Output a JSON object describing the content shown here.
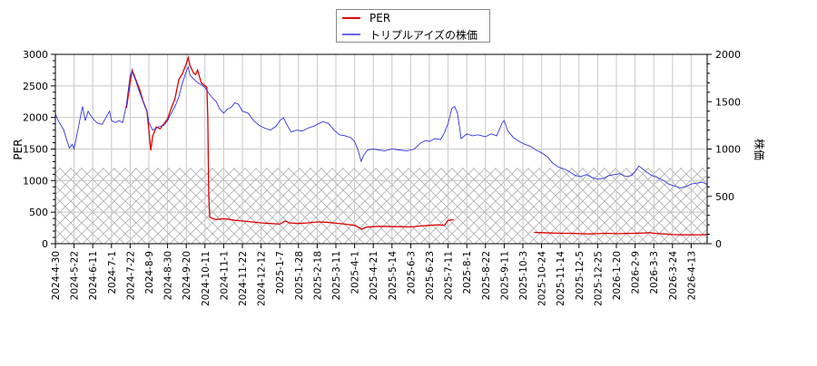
{
  "chart_data": {
    "type": "line",
    "title": "",
    "legend": {
      "position": "top-center",
      "entries": [
        {
          "label": "PER",
          "color": "#dd0000"
        },
        {
          "label": "トリプルアイズの株価",
          "color": "#3333dd"
        }
      ]
    },
    "axes": {
      "left": {
        "label": "PER",
        "min": 0,
        "max": 3000,
        "ticks": [
          0,
          500,
          1000,
          1500,
          2000,
          2500,
          3000
        ]
      },
      "right": {
        "label": "株価",
        "min": 0,
        "max": 2000,
        "ticks": [
          0,
          500,
          1000,
          1500,
          2000
        ]
      },
      "x": {
        "label": "",
        "tick_labels": [
          "2024-4-30",
          "2024-5-22",
          "2024-6-11",
          "2024-7-1",
          "2024-7-22",
          "2024-8-9",
          "2024-8-30",
          "2024-9-20",
          "2024-10-11",
          "2024-11-1",
          "2024-11-22",
          "2024-12-12",
          "2025-1-7",
          "2025-1-28",
          "2025-2-18",
          "2025-3-11",
          "2025-4-1",
          "2025-4-21",
          "2025-5-14",
          "2025-6-3",
          "2025-6-23",
          "2025-7-11",
          "2025-8-1",
          "2025-8-22",
          "2025-9-11",
          "2025-10-3",
          "2025-10-24",
          "2025-11-14",
          "2025-12-5",
          "2025-12-25",
          "2026-1-20",
          "2026-2-9",
          "2026-3-3",
          "2026-3-24",
          "2026-4-13"
        ]
      }
    },
    "grid": true,
    "hatched_band": {
      "axis": "left",
      "from": 0,
      "to": 1200,
      "pattern": "crosshatch"
    },
    "series": [
      {
        "name": "PER",
        "axis": "left",
        "color": "#dd0000",
        "segments": [
          [
            [
              3.8,
              2150
            ],
            [
              4.0,
              2550
            ],
            [
              4.1,
              2750
            ],
            [
              4.3,
              2600
            ],
            [
              4.5,
              2450
            ],
            [
              4.7,
              2250
            ],
            [
              4.9,
              2100
            ],
            [
              5.0,
              1800
            ],
            [
              5.1,
              1480
            ],
            [
              5.2,
              1700
            ],
            [
              5.4,
              1850
            ],
            [
              5.6,
              1820
            ],
            [
              5.8,
              1900
            ],
            [
              6.0,
              1980
            ],
            [
              6.2,
              2150
            ],
            [
              6.4,
              2300
            ],
            [
              6.6,
              2600
            ],
            [
              6.8,
              2700
            ],
            [
              7.0,
              2850
            ],
            [
              7.1,
              2950
            ],
            [
              7.2,
              2820
            ],
            [
              7.4,
              2700
            ],
            [
              7.5,
              2680
            ],
            [
              7.6,
              2750
            ],
            [
              7.8,
              2550
            ],
            [
              8.0,
              2500
            ],
            [
              8.1,
              2480
            ],
            [
              8.15,
              2000
            ],
            [
              8.2,
              800
            ],
            [
              8.25,
              420
            ],
            [
              8.4,
              400
            ],
            [
              8.6,
              380
            ],
            [
              8.8,
              390
            ],
            [
              9.0,
              395
            ],
            [
              9.3,
              385
            ],
            [
              9.6,
              370
            ],
            [
              10.0,
              360
            ],
            [
              10.5,
              345
            ],
            [
              11.0,
              330
            ],
            [
              11.5,
              320
            ],
            [
              12.0,
              310
            ],
            [
              12.3,
              360
            ],
            [
              12.5,
              330
            ],
            [
              13.0,
              320
            ],
            [
              13.5,
              330
            ],
            [
              14.0,
              345
            ],
            [
              14.5,
              340
            ],
            [
              15.0,
              325
            ],
            [
              15.5,
              310
            ],
            [
              16.0,
              290
            ],
            [
              16.2,
              260
            ],
            [
              16.4,
              230
            ],
            [
              16.6,
              260
            ],
            [
              17.0,
              270
            ],
            [
              17.5,
              275
            ],
            [
              18.0,
              270
            ],
            [
              18.5,
              270
            ],
            [
              19.0,
              265
            ],
            [
              19.5,
              280
            ],
            [
              20.0,
              290
            ],
            [
              20.5,
              300
            ],
            [
              20.8,
              290
            ],
            [
              21.0,
              370
            ],
            [
              21.3,
              380
            ]
          ],
          [
            [
              25.6,
              180
            ],
            [
              26.0,
              175
            ],
            [
              26.5,
              170
            ],
            [
              27.0,
              165
            ],
            [
              27.5,
              165
            ],
            [
              28.0,
              160
            ],
            [
              28.5,
              155
            ],
            [
              29.0,
              160
            ],
            [
              29.5,
              165
            ],
            [
              30.0,
              160
            ],
            [
              30.5,
              162
            ],
            [
              31.0,
              165
            ],
            [
              31.5,
              170
            ],
            [
              31.8,
              175
            ],
            [
              32.0,
              165
            ],
            [
              32.5,
              155
            ],
            [
              33.0,
              145
            ],
            [
              33.5,
              140
            ],
            [
              34.0,
              140
            ],
            [
              34.5,
              142
            ],
            [
              35.0,
              145
            ],
            [
              35.3,
              150
            ]
          ]
        ]
      },
      {
        "name": "トリプルアイズの株価",
        "axis": "right",
        "color": "#3333dd",
        "points": [
          [
            0.0,
            1370
          ],
          [
            0.15,
            1300
          ],
          [
            0.3,
            1250
          ],
          [
            0.45,
            1200
          ],
          [
            0.6,
            1100
          ],
          [
            0.75,
            1010
          ],
          [
            0.9,
            1050
          ],
          [
            1.0,
            1000
          ],
          [
            1.15,
            1150
          ],
          [
            1.3,
            1300
          ],
          [
            1.45,
            1450
          ],
          [
            1.6,
            1300
          ],
          [
            1.75,
            1400
          ],
          [
            1.9,
            1350
          ],
          [
            2.1,
            1300
          ],
          [
            2.3,
            1270
          ],
          [
            2.5,
            1260
          ],
          [
            2.7,
            1330
          ],
          [
            2.9,
            1400
          ],
          [
            3.0,
            1300
          ],
          [
            3.2,
            1280
          ],
          [
            3.4,
            1300
          ],
          [
            3.6,
            1280
          ],
          [
            3.8,
            1470
          ],
          [
            4.0,
            1780
          ],
          [
            4.1,
            1820
          ],
          [
            4.3,
            1720
          ],
          [
            4.5,
            1600
          ],
          [
            4.7,
            1500
          ],
          [
            4.8,
            1450
          ],
          [
            4.9,
            1400
          ],
          [
            5.0,
            1280
          ],
          [
            5.2,
            1200
          ],
          [
            5.4,
            1220
          ],
          [
            5.6,
            1240
          ],
          [
            5.8,
            1250
          ],
          [
            6.0,
            1300
          ],
          [
            6.2,
            1380
          ],
          [
            6.4,
            1450
          ],
          [
            6.6,
            1550
          ],
          [
            6.8,
            1700
          ],
          [
            7.0,
            1820
          ],
          [
            7.1,
            1870
          ],
          [
            7.2,
            1780
          ],
          [
            7.4,
            1740
          ],
          [
            7.6,
            1700
          ],
          [
            7.8,
            1680
          ],
          [
            8.0,
            1650
          ],
          [
            8.2,
            1590
          ],
          [
            8.4,
            1540
          ],
          [
            8.6,
            1500
          ],
          [
            8.8,
            1420
          ],
          [
            9.0,
            1380
          ],
          [
            9.2,
            1420
          ],
          [
            9.4,
            1440
          ],
          [
            9.6,
            1490
          ],
          [
            9.8,
            1470
          ],
          [
            10.0,
            1400
          ],
          [
            10.3,
            1380
          ],
          [
            10.6,
            1300
          ],
          [
            10.9,
            1250
          ],
          [
            11.2,
            1220
          ],
          [
            11.5,
            1200
          ],
          [
            11.8,
            1240
          ],
          [
            12.0,
            1300
          ],
          [
            12.2,
            1330
          ],
          [
            12.4,
            1250
          ],
          [
            12.6,
            1180
          ],
          [
            12.9,
            1200
          ],
          [
            13.2,
            1190
          ],
          [
            13.5,
            1220
          ],
          [
            13.8,
            1240
          ],
          [
            14.0,
            1260
          ],
          [
            14.3,
            1290
          ],
          [
            14.6,
            1270
          ],
          [
            14.9,
            1200
          ],
          [
            15.2,
            1150
          ],
          [
            15.5,
            1140
          ],
          [
            15.8,
            1120
          ],
          [
            16.0,
            1080
          ],
          [
            16.2,
            980
          ],
          [
            16.35,
            870
          ],
          [
            16.5,
            940
          ],
          [
            16.7,
            990
          ],
          [
            17.0,
            1000
          ],
          [
            17.3,
            990
          ],
          [
            17.6,
            980
          ],
          [
            18.0,
            1000
          ],
          [
            18.4,
            990
          ],
          [
            18.8,
            980
          ],
          [
            19.2,
            1000
          ],
          [
            19.5,
            1060
          ],
          [
            19.8,
            1090
          ],
          [
            20.0,
            1080
          ],
          [
            20.3,
            1110
          ],
          [
            20.6,
            1100
          ],
          [
            20.8,
            1170
          ],
          [
            21.0,
            1270
          ],
          [
            21.2,
            1430
          ],
          [
            21.35,
            1450
          ],
          [
            21.5,
            1380
          ],
          [
            21.7,
            1110
          ],
          [
            22.0,
            1160
          ],
          [
            22.3,
            1140
          ],
          [
            22.6,
            1150
          ],
          [
            23.0,
            1130
          ],
          [
            23.3,
            1160
          ],
          [
            23.6,
            1140
          ],
          [
            23.9,
            1280
          ],
          [
            24.0,
            1300
          ],
          [
            24.2,
            1190
          ],
          [
            24.5,
            1120
          ],
          [
            24.8,
            1080
          ],
          [
            25.1,
            1050
          ],
          [
            25.4,
            1030
          ],
          [
            25.7,
            990
          ],
          [
            26.0,
            960
          ],
          [
            26.3,
            920
          ],
          [
            26.6,
            850
          ],
          [
            26.9,
            810
          ],
          [
            27.2,
            790
          ],
          [
            27.5,
            760
          ],
          [
            27.8,
            720
          ],
          [
            28.1,
            710
          ],
          [
            28.4,
            730
          ],
          [
            28.7,
            700
          ],
          [
            29.0,
            680
          ],
          [
            29.3,
            690
          ],
          [
            29.6,
            720
          ],
          [
            29.9,
            730
          ],
          [
            30.2,
            740
          ],
          [
            30.5,
            710
          ],
          [
            30.8,
            720
          ],
          [
            31.0,
            760
          ],
          [
            31.2,
            820
          ],
          [
            31.4,
            790
          ],
          [
            31.6,
            760
          ],
          [
            31.9,
            720
          ],
          [
            32.2,
            700
          ],
          [
            32.5,
            670
          ],
          [
            32.8,
            630
          ],
          [
            33.1,
            610
          ],
          [
            33.4,
            590
          ],
          [
            33.7,
            600
          ],
          [
            34.0,
            630
          ],
          [
            34.3,
            640
          ],
          [
            34.6,
            650
          ],
          [
            34.9,
            620
          ],
          [
            35.2,
            600
          ]
        ]
      }
    ]
  }
}
